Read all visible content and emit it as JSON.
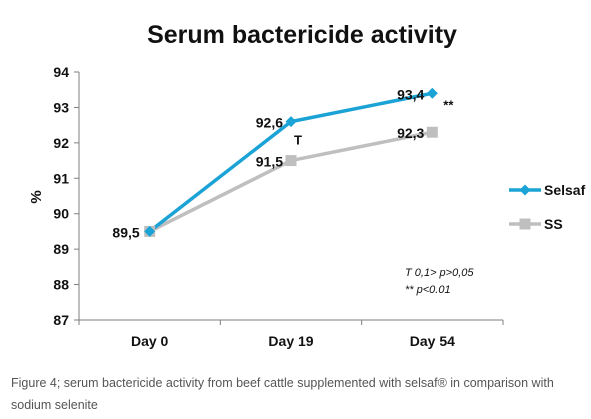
{
  "chart_data": {
    "type": "line",
    "title": "Serum bactericide activity",
    "ylabel": "%",
    "xlabel": "",
    "categories": [
      "Day 0",
      "Day 19",
      "Day 54"
    ],
    "ylim": [
      87,
      94
    ],
    "yticks": [
      "87",
      "88",
      "89",
      "90",
      "91",
      "92",
      "93",
      "94"
    ],
    "grid": false,
    "legend_position": "right",
    "series": [
      {
        "name": "Selsaf",
        "values": [
          89.5,
          92.6,
          93.4
        ],
        "labels": [
          "89,5",
          "92,6",
          "93,4"
        ],
        "color": "#1ba3d6",
        "marker": "diamond"
      },
      {
        "name": "SS",
        "values": [
          89.5,
          91.5,
          92.3
        ],
        "labels": [
          "",
          "91,5",
          "92,3"
        ],
        "color": "#bfbfbf",
        "marker": "square"
      }
    ],
    "annotations": [
      {
        "text": "T",
        "category": "Day 19"
      },
      {
        "text": "**",
        "category": "Day 54"
      }
    ],
    "footnotes": [
      "T  0,1> p>0,05",
      "** p<0.01"
    ]
  },
  "caption": "Figure 4; serum bactericide activity from beef cattle supplemented with selsaf® in comparison with sodium selenite"
}
